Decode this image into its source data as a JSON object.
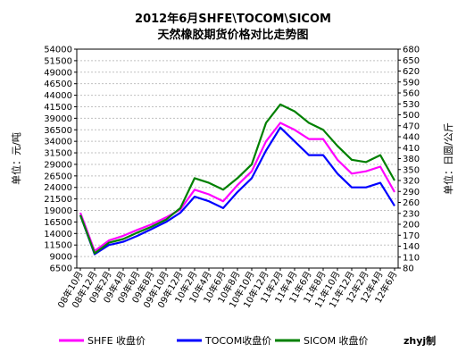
{
  "chart_data": {
    "type": "line",
    "title_line1": "2012年6月SHFE\\TOCOM\\SICOM",
    "title_line2": "天然橡胶期货价格对比走势图",
    "ylabel_left": "单位：元/吨",
    "ylabel_right": "单位：日圆/公斤",
    "left_axis": {
      "min": 6500,
      "max": 54000,
      "step": 2500,
      "tick_labels": [
        "6500",
        "9000",
        "11500",
        "14000",
        "16500",
        "19000",
        "21500",
        "24000",
        "26500",
        "29000",
        "31500",
        "34000",
        "36500",
        "39000",
        "41500",
        "44000",
        "46500",
        "49000",
        "51500",
        "54000"
      ]
    },
    "right_axis": {
      "min": 80,
      "max": 680,
      "step": 30,
      "tick_labels": [
        "80",
        "110",
        "140",
        "170",
        "200",
        "230",
        "260",
        "290",
        "320",
        "350",
        "380",
        "410",
        "440",
        "470",
        "500",
        "530",
        "560",
        "590",
        "620",
        "650",
        "680"
      ]
    },
    "x_tick_labels": [
      "08年10月",
      "08年12月",
      "09年2月",
      "09年4月",
      "09年6月",
      "09年8月",
      "09年10月",
      "09年12月",
      "10年2月",
      "10年4月",
      "10年6月",
      "10年8月",
      "10年10月",
      "10年12月",
      "11年2月",
      "11年4月",
      "11年6月",
      "11年8月",
      "11年10月",
      "11年12月",
      "12年2月",
      "12年4月",
      "12年6月"
    ],
    "x": [
      "08年10月",
      "08年12月",
      "09年2月",
      "09年4月",
      "09年6月",
      "09年8月",
      "09年10月",
      "09年12月",
      "10年2月",
      "10年4月",
      "10年6月",
      "10年8月",
      "10年10月",
      "10年12月",
      "11年2月",
      "11年4月",
      "11年6月",
      "11年8月",
      "11年10月",
      "11年12月",
      "12年2月",
      "12年4月",
      "12年6月"
    ],
    "series": [
      {
        "name": "SHFE 收盘价",
        "axis": "left",
        "color": "#ff00ff",
        "values": [
          18500,
          10200,
          12500,
          13500,
          14800,
          16000,
          17500,
          19200,
          23500,
          22500,
          21000,
          24500,
          27500,
          34000,
          38000,
          36500,
          34500,
          34500,
          30000,
          27000,
          27500,
          28500,
          23000
        ]
      },
      {
        "name": "TOCOM收盘价",
        "axis": "left",
        "color": "#0000ff",
        "values": [
          18000,
          9500,
          11500,
          12200,
          13500,
          15000,
          16500,
          18500,
          22000,
          21000,
          19500,
          23000,
          26000,
          32000,
          37000,
          34000,
          31000,
          31000,
          27000,
          24000,
          24000,
          25000,
          20000
        ]
      },
      {
        "name": "SICOM 收盘价",
        "axis": "left",
        "color": "#008000",
        "values": [
          18000,
          9700,
          12000,
          12800,
          14200,
          15500,
          17000,
          19500,
          26000,
          25000,
          23500,
          26000,
          29000,
          38000,
          42000,
          40500,
          38000,
          36500,
          33000,
          30000,
          29500,
          31000,
          25500
        ]
      }
    ],
    "legend_position": "bottom",
    "grid": true
  },
  "watermark": "zhyj制"
}
